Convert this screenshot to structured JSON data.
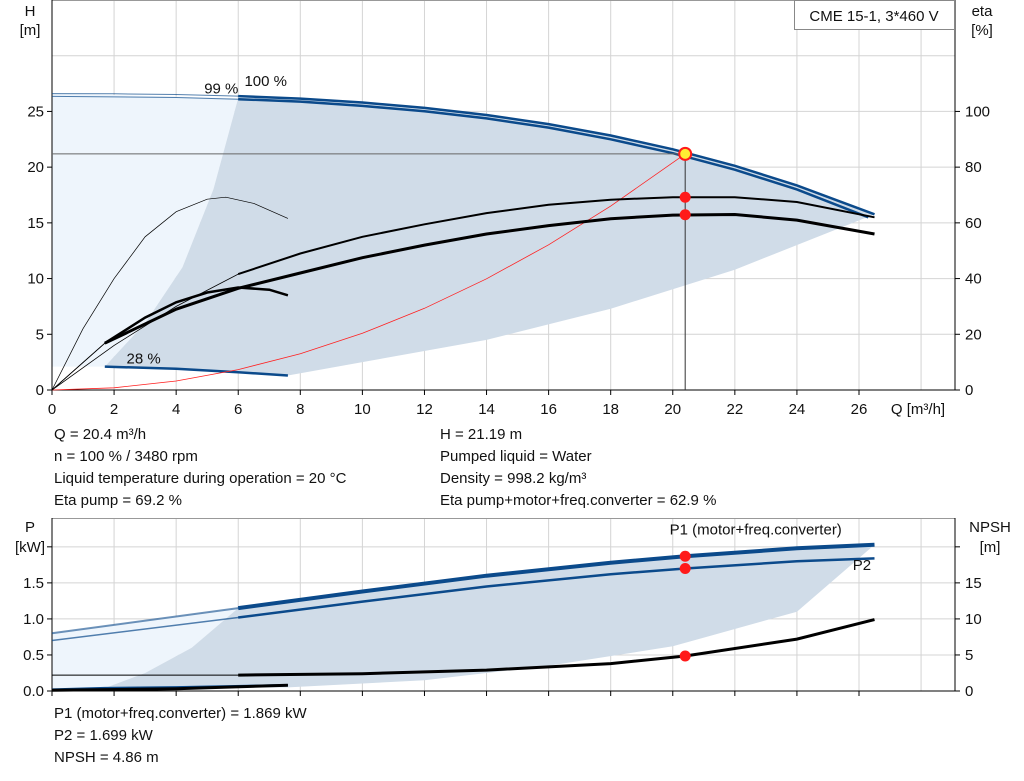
{
  "legend_box": "CME 15-1, 3*460 V",
  "info_left": [
    "Q = 20.4 m³/h",
    "n = 100 % / 3480 rpm",
    "Liquid temperature during operation = 20 °C",
    "Eta pump = 69.2 %"
  ],
  "info_right": [
    "H = 21.19 m",
    "Pumped liquid = Water",
    "Density = 998.2 kg/m³",
    "Eta pump+motor+freq.converter = 62.9 %"
  ],
  "info_bottom": [
    "P1 (motor+freq.converter) = 1.869 kW",
    "P2 = 1.699 kW",
    "NPSH = 4.86 m"
  ],
  "colors": {
    "curve_blue": "#0b4a8b",
    "shade_dark": "#d0dce8",
    "shade_light": "#eef5fc",
    "system": "#ff2020",
    "duty_point": "#ff1a1a",
    "duty_fill": "#ffee33"
  },
  "chart_data": [
    {
      "type": "line",
      "title": "",
      "xlabel": "Q [m³/h]",
      "ylabel_left": "H\n[m]",
      "ylabel_right": "eta\n[%]",
      "x_ticks": [
        0,
        2,
        4,
        6,
        8,
        10,
        12,
        14,
        16,
        18,
        20,
        22,
        24,
        26
      ],
      "y_ticks_left": [
        0,
        5,
        10,
        15,
        20,
        25
      ],
      "y_ticks_right": [
        0,
        20,
        40,
        60,
        80,
        100
      ],
      "xlim": [
        0,
        29
      ],
      "ylim_left": [
        0,
        35
      ],
      "ylim_right": [
        0,
        140
      ],
      "grid": true,
      "labels": [
        {
          "text": "100 %",
          "x": 6.2,
          "y": 27.3
        },
        {
          "text": "99 %",
          "x": 6,
          "y": 26.6
        },
        {
          "text": "28 %",
          "x": 2.4,
          "y": 2.4
        }
      ],
      "shade_light": [
        [
          0,
          26.6
        ],
        [
          6,
          26.2
        ],
        [
          5.2,
          18
        ],
        [
          4.2,
          11
        ],
        [
          3,
          6
        ],
        [
          1.7,
          2.1
        ],
        [
          0,
          2.1
        ]
      ],
      "shade_dark": [
        [
          6,
          26.2
        ],
        [
          8,
          26.15
        ],
        [
          10,
          25.8
        ],
        [
          12,
          25.32
        ],
        [
          14,
          24.68
        ],
        [
          16,
          23.86
        ],
        [
          18,
          22.84
        ],
        [
          20,
          21.6
        ],
        [
          22,
          20.12
        ],
        [
          24,
          18.36
        ],
        [
          26.5,
          15.77
        ],
        [
          22,
          10.8
        ],
        [
          18,
          7.3
        ],
        [
          14,
          4.5
        ],
        [
          10,
          2.5
        ],
        [
          7.6,
          1.3
        ],
        [
          6,
          1.6
        ],
        [
          4,
          1.9
        ],
        [
          1.7,
          2.1
        ],
        [
          3,
          6
        ],
        [
          4.2,
          11
        ],
        [
          5.2,
          18
        ]
      ],
      "series": [
        {
          "name": "100 %",
          "axis": "left",
          "style": "head",
          "values": [
            [
              0,
              26.6
            ],
            [
              2,
              26.58
            ],
            [
              4,
              26.52
            ],
            [
              6,
              26.38
            ],
            [
              8,
              26.15
            ],
            [
              10,
              25.8
            ],
            [
              12,
              25.32
            ],
            [
              14,
              24.68
            ],
            [
              16,
              23.86
            ],
            [
              18,
              22.84
            ],
            [
              20,
              21.6
            ],
            [
              22,
              20.12
            ],
            [
              24,
              18.36
            ],
            [
              26.5,
              15.77
            ]
          ]
        },
        {
          "name": "99 %",
          "axis": "left",
          "style": "head",
          "values": [
            [
              0,
              26.35
            ],
            [
              2,
              26.3
            ],
            [
              4,
              26.25
            ],
            [
              6,
              26.1
            ],
            [
              8,
              25.88
            ],
            [
              10,
              25.5
            ],
            [
              12,
              25.02
            ],
            [
              14,
              24.37
            ],
            [
              16,
              23.55
            ],
            [
              18,
              22.5
            ],
            [
              20,
              21.25
            ],
            [
              22,
              19.77
            ],
            [
              24,
              18
            ],
            [
              26.3,
              15.5
            ]
          ]
        },
        {
          "name": "28 %",
          "axis": "left",
          "style": "head",
          "values": [
            [
              0,
              2.1
            ],
            [
              1.7,
              2.1
            ],
            [
              4,
              1.9
            ],
            [
              6,
              1.6
            ],
            [
              7.6,
              1.3
            ]
          ]
        },
        {
          "axis": "left",
          "style": "system",
          "values": [
            [
              0,
              0
            ],
            [
              2,
              0.2
            ],
            [
              4,
              0.81
            ],
            [
              6,
              1.83
            ],
            [
              8,
              3.26
            ],
            [
              10,
              5.09
            ],
            [
              12,
              7.33
            ],
            [
              14,
              9.98
            ],
            [
              16,
              13.03
            ],
            [
              18,
              16.5
            ],
            [
              20.4,
              21.19
            ]
          ]
        },
        {
          "axis": "right",
          "style": "eta",
          "values": [
            [
              0,
              0
            ],
            [
              2,
              16
            ],
            [
              4,
              30
            ],
            [
              6,
              41.6
            ],
            [
              8,
              49
            ],
            [
              10,
              55
            ],
            [
              12,
              59.5
            ],
            [
              14,
              63.5
            ],
            [
              16,
              66.5
            ],
            [
              18,
              68.3
            ],
            [
              20,
              69.2
            ],
            [
              22,
              69.2
            ],
            [
              24,
              67.5
            ],
            [
              26.5,
              62
            ]
          ]
        },
        {
          "axis": "right",
          "style": "eta",
          "values": [
            [
              0,
              0
            ],
            [
              1.7,
              16.8
            ],
            [
              4,
              29
            ],
            [
              6,
              36.5
            ],
            [
              8,
              42
            ],
            [
              10,
              47.5
            ],
            [
              12,
              52
            ],
            [
              14,
              56
            ],
            [
              16,
              59
            ],
            [
              18,
              61.5
            ],
            [
              20,
              62.8
            ],
            [
              22,
              63
            ],
            [
              24,
              61
            ],
            [
              26.5,
              56
            ]
          ]
        },
        {
          "axis": "right",
          "style": "eta-low",
          "values": [
            [
              0,
              0
            ],
            [
              1,
              22
            ],
            [
              2,
              40
            ],
            [
              3,
              55
            ],
            [
              4,
              64
            ],
            [
              5,
              68.5
            ],
            [
              5.6,
              69.2
            ],
            [
              6.5,
              67
            ],
            [
              7.6,
              61.6
            ]
          ]
        },
        {
          "axis": "right",
          "style": "eta-low-thick",
          "values": [
            [
              0,
              0
            ],
            [
              1.7,
              16.8
            ],
            [
              3,
              26
            ],
            [
              4,
              31.5
            ],
            [
              5,
              35
            ],
            [
              6,
              36.8
            ],
            [
              7,
              36
            ],
            [
              7.6,
              34
            ]
          ]
        }
      ],
      "duty_point": {
        "q": 20.4,
        "h": 21.19,
        "eta_pump": 69.2,
        "eta_total": 62.9
      }
    },
    {
      "type": "line",
      "title": "",
      "ylabel_left": "P\n[kW]",
      "ylabel_right": "NPSH\n[m]",
      "x_ticks": [
        0,
        2,
        4,
        6,
        8,
        10,
        12,
        14,
        16,
        18,
        20,
        22,
        24,
        26
      ],
      "y_ticks_left": [
        "0.0",
        "0.5",
        "1.0",
        "1.5"
      ],
      "y_ticks_right": [
        0,
        5,
        10,
        15
      ],
      "xlim": [
        0,
        29
      ],
      "ylim_left": [
        0,
        2.4
      ],
      "ylim_right": [
        0,
        24
      ],
      "grid": true,
      "labels": [
        {
          "text": "P1 (motor+freq.converter)",
          "x": 19.9,
          "y": 2.17,
          "color": "#0b4a8b"
        },
        {
          "text": "P2",
          "x": 25.8,
          "y": 1.68,
          "color": "#0b4a8b"
        }
      ],
      "shade_light": [
        [
          0,
          0.8
        ],
        [
          6,
          1.15
        ],
        [
          4.5,
          0.6
        ],
        [
          3,
          0.25
        ],
        [
          1.7,
          0.04
        ],
        [
          0,
          0.02
        ]
      ],
      "shade_dark": [
        [
          6,
          1.15
        ],
        [
          10,
          1.38
        ],
        [
          14,
          1.6
        ],
        [
          18,
          1.78
        ],
        [
          20.4,
          1.869
        ],
        [
          24,
          1.98
        ],
        [
          26.5,
          2.03
        ],
        [
          24,
          1.1
        ],
        [
          20,
          0.62
        ],
        [
          16,
          0.35
        ],
        [
          12,
          0.15
        ],
        [
          7.6,
          0.05
        ],
        [
          1.7,
          0.04
        ],
        [
          3,
          0.25
        ],
        [
          4.5,
          0.6
        ]
      ],
      "series": [
        {
          "name": "P1 (motor+freq.converter)",
          "axis": "left",
          "style": "p1",
          "values": [
            [
              0,
              0.8
            ],
            [
              6,
              1.15
            ],
            [
              10,
              1.38
            ],
            [
              14,
              1.6
            ],
            [
              18,
              1.78
            ],
            [
              20.4,
              1.869
            ],
            [
              24,
              1.98
            ],
            [
              26.5,
              2.03
            ]
          ]
        },
        {
          "name": "P2",
          "axis": "left",
          "style": "p2",
          "values": [
            [
              0,
              0.7
            ],
            [
              6,
              1.02
            ],
            [
              10,
              1.24
            ],
            [
              14,
              1.45
            ],
            [
              18,
              1.62
            ],
            [
              20.4,
              1.699
            ],
            [
              24,
              1.8
            ],
            [
              26.5,
              1.84
            ]
          ]
        },
        {
          "axis": "left",
          "style": "p2",
          "values": [
            [
              0,
              0.02
            ],
            [
              1.7,
              0.04
            ],
            [
              4,
              0.05
            ],
            [
              7.6,
              0.08
            ]
          ]
        },
        {
          "name": "NPSH",
          "axis": "right",
          "style": "npsh",
          "values": [
            [
              0,
              2.2
            ],
            [
              6,
              2.2
            ],
            [
              10,
              2.4
            ],
            [
              14,
              2.9
            ],
            [
              18,
              3.8
            ],
            [
              20.4,
              4.86
            ],
            [
              24,
              7.2
            ],
            [
              26.5,
              9.9
            ]
          ]
        },
        {
          "axis": "right",
          "style": "npsh",
          "values": [
            [
              0,
              0.1
            ],
            [
              4,
              0.3
            ],
            [
              7.6,
              0.8
            ]
          ]
        }
      ],
      "duty_point": {
        "q": 20.4,
        "p1": 1.869,
        "p2": 1.699,
        "npsh": 4.86
      }
    }
  ]
}
